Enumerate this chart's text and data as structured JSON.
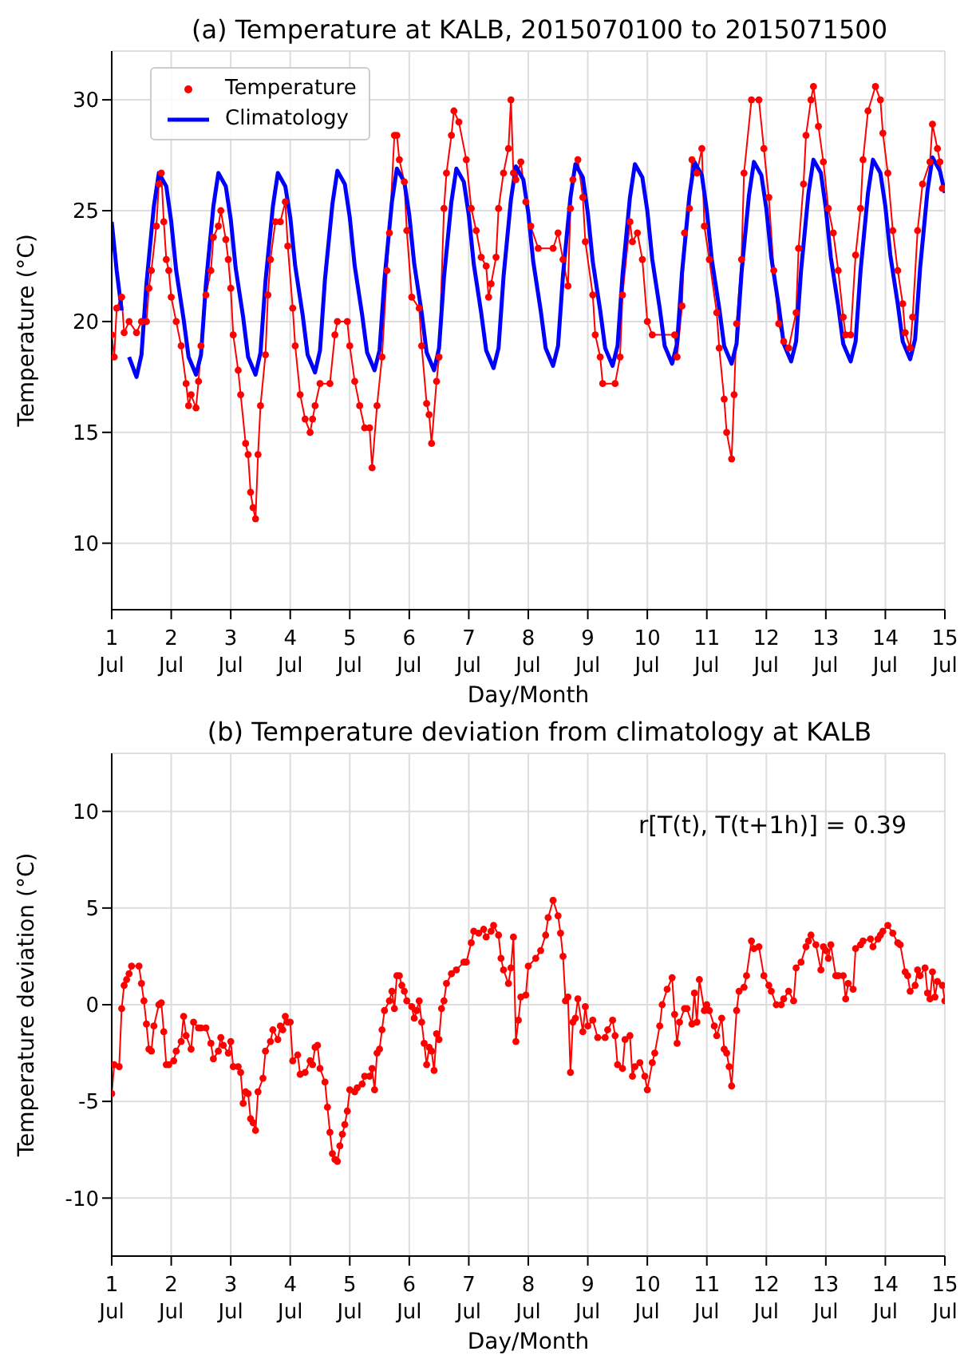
{
  "chart_data": [
    {
      "type": "line",
      "title": "(a) Temperature at KALB, 2015070100 to 2015071500",
      "xlabel": "Day/Month",
      "ylabel": "Temperature (°C)",
      "xlim": [
        "--07-01",
        "--07-15"
      ],
      "xticks": [
        {
          "value": "--07-01",
          "label": "1 Jul"
        },
        {
          "value": "--07-02",
          "label": "2 Jul"
        },
        {
          "value": "--07-03",
          "label": "3 Jul"
        },
        {
          "value": "--07-04",
          "label": "4 Jul"
        },
        {
          "value": "--07-05",
          "label": "5 Jul"
        },
        {
          "value": "--07-06",
          "label": "6 Jul"
        },
        {
          "value": "--07-07",
          "label": "7 Jul"
        },
        {
          "value": "--07-08",
          "label": "8 Jul"
        },
        {
          "value": "--07-09",
          "label": "9 Jul"
        },
        {
          "value": "--07-10",
          "label": "10 Jul"
        },
        {
          "value": "--07-11",
          "label": "11 Jul"
        },
        {
          "value": "--07-12",
          "label": "12 Jul"
        },
        {
          "value": "--07-13",
          "label": "13 Jul"
        },
        {
          "value": "--07-14",
          "label": "14 Jul"
        },
        {
          "value": "--07-15",
          "label": "15 Jul"
        }
      ],
      "ylim": [
        7,
        32.2
      ],
      "yticks": [
        10,
        15,
        20,
        25,
        30
      ],
      "grid": true,
      "legend": "top left",
      "series": [
        {
          "name": "Temperature",
          "color": "#ff0000",
          "marker": "circle",
          "x": [
            "--07-01T00:00",
            "--07-01T01:00",
            "--07-01T02:00",
            "--07-01T04:00",
            "--07-01T05:00",
            "--07-01T07:00",
            "--07-01T10:00",
            "--07-01T12:00",
            "--07-01T14:00",
            "--07-01T15:00",
            "--07-01T16:00",
            "--07-01T18:00",
            "--07-01T19:00",
            "--07-01T20:00",
            "--07-01T21:00",
            "--07-01T22:00",
            "--07-01T23:00",
            "--07-02T00:00",
            "--07-02T02:00",
            "--07-02T04:00",
            "--07-02T06:00",
            "--07-02T07:00",
            "--07-02T08:00",
            "--07-02T10:00",
            "--07-02T11:00",
            "--07-02T12:00",
            "--07-02T14:00",
            "--07-02T16:00",
            "--07-02T17:00",
            "--07-02T19:00",
            "--07-02T20:00",
            "--07-02T22:00",
            "--07-02T23:00",
            "--07-03T00:00",
            "--07-03T01:00",
            "--07-03T03:00",
            "--07-03T04:00",
            "--07-03T06:00",
            "--07-03T07:00",
            "--07-03T08:00",
            "--07-03T09:00",
            "--07-03T10:00",
            "--07-03T11:00",
            "--07-03T12:00",
            "--07-03T14:00",
            "--07-03T15:00",
            "--07-03T16:00",
            "--07-03T18:00",
            "--07-03T20:00",
            "--07-03T22:00",
            "--07-03T23:00",
            "--07-04T01:00",
            "--07-04T02:00",
            "--07-04T04:00",
            "--07-04T06:00",
            "--07-04T08:00",
            "--07-04T09:00",
            "--07-04T10:00",
            "--07-04T12:00",
            "--07-04T16:00",
            "--07-04T18:00",
            "--07-04T19:00",
            "--07-04T23:00",
            "--07-05T00:00",
            "--07-05T02:00",
            "--07-05T04:00",
            "--07-05T06:00",
            "--07-05T08:00",
            "--07-05T09:00",
            "--07-05T11:00",
            "--07-05T13:00",
            "--07-05T15:00",
            "--07-05T16:00",
            "--07-05T18:00",
            "--07-05T19:00",
            "--07-05T20:00",
            "--07-05T22:00",
            "--07-05T23:00",
            "--07-06T01:00",
            "--07-06T04:00",
            "--07-06T05:00",
            "--07-06T07:00",
            "--07-06T08:00",
            "--07-06T09:00",
            "--07-06T11:00",
            "--07-06T12:00",
            "--07-06T14:00",
            "--07-06T15:00",
            "--07-06T17:00",
            "--07-06T18:00",
            "--07-06T20:00",
            "--07-06T23:00",
            "--07-07T01:00",
            "--07-07T03:00",
            "--07-07T05:00",
            "--07-07T07:00",
            "--07-07T08:00",
            "--07-07T09:00",
            "--07-07T11:00",
            "--07-07T12:00",
            "--07-07T14:00",
            "--07-07T16:00",
            "--07-07T17:00",
            "--07-07T18:00",
            "--07-07T19:00",
            "--07-07T21:00",
            "--07-07T23:00",
            "--07-08T01:00",
            "--07-08T04:00",
            "--07-08T10:00",
            "--07-08T12:00",
            "--07-08T14:00",
            "--07-08T16:00",
            "--07-08T17:00",
            "--07-08T18:00",
            "--07-08T20:00",
            "--07-08T22:00",
            "--07-08T23:00",
            "--07-09T02:00",
            "--07-09T03:00",
            "--07-09T05:00",
            "--07-09T06:00",
            "--07-09T11:00",
            "--07-09T13:00",
            "--07-09T14:00",
            "--07-09T17:00",
            "--07-09T18:00",
            "--07-09T20:00",
            "--07-09T22:00",
            "--07-10T00:00",
            "--07-10T02:00",
            "--07-10T11:00",
            "--07-10T12:00",
            "--07-10T14:00",
            "--07-10T15:00",
            "--07-10T17:00",
            "--07-10T18:00",
            "--07-10T20:00",
            "--07-10T22:00",
            "--07-10T23:00",
            "--07-11T01:00",
            "--07-11T04:00",
            "--07-11T05:00",
            "--07-11T07:00",
            "--07-11T08:00",
            "--07-11T10:00",
            "--07-11T11:00",
            "--07-11T12:00",
            "--07-11T14:00",
            "--07-11T15:00",
            "--07-11T18:00",
            "--07-11T21:00",
            "--07-11T23:00",
            "--07-12T01:00",
            "--07-12T03:00",
            "--07-12T05:00",
            "--07-12T07:00",
            "--07-12T09:00",
            "--07-12T12:00",
            "--07-12T13:00",
            "--07-12T15:00",
            "--07-12T16:00",
            "--07-12T18:00",
            "--07-12T19:00",
            "--07-12T21:00",
            "--07-12T23:00",
            "--07-13T01:00",
            "--07-13T03:00",
            "--07-13T05:00",
            "--07-13T07:00",
            "--07-13T08:00",
            "--07-13T10:00",
            "--07-13T12:00",
            "--07-13T14:00",
            "--07-13T15:00",
            "--07-13T17:00",
            "--07-13T20:00",
            "--07-13T22:00",
            "--07-13T23:00",
            "--07-14T01:00",
            "--07-14T03:00",
            "--07-14T05:00",
            "--07-14T07:00",
            "--07-14T08:00",
            "--07-14T10:00",
            "--07-14T11:00",
            "--07-14T13:00",
            "--07-14T15:00",
            "--07-14T18:00",
            "--07-14T19:00",
            "--07-14T21:00",
            "--07-14T22:00",
            "--07-14T23:00"
          ],
          "values": [
            19.4,
            18.4,
            20.6,
            21.1,
            19.5,
            20,
            19.5,
            20,
            20,
            21.5,
            22.3,
            24.3,
            26.2,
            26.7,
            24.5,
            22.8,
            22.3,
            21.1,
            20,
            18.9,
            17.2,
            16.2,
            16.7,
            16.1,
            17.3,
            18.9,
            21.2,
            22.3,
            23.8,
            24.3,
            25,
            23.7,
            22.8,
            21.5,
            19.4,
            17.8,
            16.7,
            14.5,
            14,
            12.3,
            11.6,
            11.1,
            14,
            16.2,
            18.5,
            21.2,
            22.8,
            24.5,
            24.5,
            25.4,
            23.4,
            20.6,
            18.9,
            16.7,
            15.6,
            15,
            15.6,
            16.2,
            17.2,
            17.2,
            19.4,
            20,
            20,
            18.9,
            17.3,
            16.2,
            15.2,
            15.2,
            13.4,
            16.2,
            18.4,
            22.3,
            24,
            28.4,
            28.4,
            27.3,
            26.3,
            24.1,
            21.1,
            20.6,
            18.9,
            16.3,
            15.8,
            14.5,
            17.3,
            18.4,
            25.1,
            26.7,
            28.4,
            29.5,
            29,
            27.3,
            25.1,
            24.1,
            22.9,
            22.5,
            21.1,
            21.7,
            22.9,
            25.1,
            26.7,
            27.8,
            30,
            26.7,
            26.4,
            27.2,
            25.4,
            24.3,
            23.3,
            23.3,
            24,
            22.8,
            21.6,
            25.1,
            26.4,
            27.3,
            25.6,
            23.6,
            21.2,
            19.4,
            18.4,
            17.2,
            17.2,
            18.4,
            21.2,
            24.5,
            23.6,
            24,
            22.8,
            20,
            19.4,
            19.4,
            18.4,
            20.7,
            24,
            25.1,
            27.3,
            26.7,
            27.8,
            24.3,
            22.8,
            20.4,
            18.8,
            16.5,
            15,
            13.8,
            16.7,
            19.9,
            22.8,
            26.7,
            30,
            30,
            27.8,
            25.6,
            22.3,
            19.9,
            19.1,
            18.8,
            20.4,
            23.3,
            26.2,
            28.4,
            30,
            30.6,
            28.8,
            27.2,
            25.1,
            24,
            22.3,
            20.2,
            19.4,
            19.4,
            23,
            25.1,
            27.3,
            29.5,
            30.6,
            30,
            28.5,
            26.7,
            24.1,
            22.3,
            20.8,
            19.5,
            18.8,
            20.2,
            24.1,
            26.2,
            27.2,
            28.9,
            27.8,
            27.2,
            26
          ]
        },
        {
          "name": "Climatology",
          "color": "#0000ff",
          "marker": "none",
          "x": [
            "--07-01T00:00",
            "--07-01T02:00",
            "--07-01T04:00",
            "--07-01T05:00",
            "--07-01T07:00",
            "--07-01T10:00",
            "--07-01T12:00",
            "--07-01T14:00",
            "--07-01T17:00",
            "--07-01T19:00",
            "--07-01T22:00",
            "--07-02T00:00",
            "--07-02T02:00",
            "--07-02T05:00",
            "--07-02T07:00",
            "--07-02T10:00",
            "--07-02T12:00",
            "--07-02T14:00",
            "--07-02T17:00",
            "--07-02T19:00",
            "--07-02T22:00",
            "--07-03T00:00",
            "--07-03T02:00",
            "--07-03T05:00",
            "--07-03T07:00",
            "--07-03T10:00",
            "--07-03T12:00",
            "--07-03T14:00",
            "--07-03T17:00",
            "--07-03T19:00",
            "--07-03T22:00",
            "--07-04T00:00",
            "--07-04T02:00",
            "--07-04T05:00",
            "--07-04T07:00",
            "--07-04T10:00",
            "--07-04T12:00",
            "--07-04T14:00",
            "--07-04T17:00",
            "--07-04T19:00",
            "--07-04T22:00",
            "--07-05T00:00",
            "--07-05T02:00",
            "--07-05T05:00",
            "--07-05T07:00",
            "--07-05T10:00",
            "--07-05T12:00",
            "--07-05T14:00",
            "--07-05T17:00",
            "--07-05T19:00",
            "--07-05T22:00",
            "--07-06T00:00",
            "--07-06T02:00",
            "--07-06T05:00",
            "--07-06T07:00",
            "--07-06T10:00",
            "--07-06T12:00",
            "--07-06T14:00",
            "--07-06T17:00",
            "--07-06T19:00",
            "--07-06T22:00",
            "--07-07T00:00",
            "--07-07T02:00",
            "--07-07T05:00",
            "--07-07T07:00",
            "--07-07T10:00",
            "--07-07T12:00",
            "--07-07T14:00",
            "--07-07T17:00",
            "--07-07T19:00",
            "--07-07T22:00",
            "--07-08T00:00",
            "--07-08T02:00",
            "--07-08T05:00",
            "--07-08T07:00",
            "--07-08T10:00",
            "--07-08T12:00",
            "--07-08T14:00",
            "--07-08T17:00",
            "--07-08T19:00",
            "--07-08T22:00",
            "--07-09T00:00",
            "--07-09T02:00",
            "--07-09T05:00",
            "--07-09T07:00",
            "--07-09T10:00",
            "--07-09T12:00",
            "--07-09T14:00",
            "--07-09T17:00",
            "--07-09T19:00",
            "--07-09T22:00",
            "--07-10T00:00",
            "--07-10T02:00",
            "--07-10T05:00",
            "--07-10T07:00",
            "--07-10T10:00",
            "--07-10T12:00",
            "--07-10T14:00",
            "--07-10T17:00",
            "--07-10T19:00",
            "--07-10T22:00",
            "--07-11T00:00",
            "--07-11T02:00",
            "--07-11T05:00",
            "--07-11T07:00",
            "--07-11T10:00",
            "--07-11T12:00",
            "--07-11T14:00",
            "--07-11T17:00",
            "--07-11T19:00",
            "--07-11T22:00",
            "--07-12T00:00",
            "--07-12T02:00",
            "--07-12T05:00",
            "--07-12T07:00",
            "--07-12T10:00",
            "--07-12T12:00",
            "--07-12T14:00",
            "--07-12T17:00",
            "--07-12T19:00",
            "--07-12T22:00",
            "--07-13T00:00",
            "--07-13T02:00",
            "--07-13T05:00",
            "--07-13T07:00",
            "--07-13T10:00",
            "--07-13T12:00",
            "--07-13T14:00",
            "--07-13T17:00",
            "--07-13T19:00",
            "--07-13T22:00",
            "--07-14T00:00",
            "--07-14T02:00",
            "--07-14T05:00",
            "--07-14T07:00",
            "--07-14T10:00",
            "--07-14T12:00",
            "--07-14T14:00",
            "--07-14T17:00",
            "--07-14T19:00",
            "--07-14T22:00",
            "--07-15T00:00"
          ],
          "values": [
            24.5,
            22.3,
            20.5,
            null,
            18.4,
            17.5,
            18.5,
            21.7,
            25.2,
            26.7,
            26.1,
            24.5,
            22.3,
            20.1,
            18.4,
            17.6,
            18.5,
            21.7,
            25.2,
            26.7,
            26.1,
            24.6,
            22.4,
            20.2,
            18.4,
            17.6,
            18.6,
            21.8,
            25.2,
            26.7,
            26.1,
            24.7,
            22.5,
            20.3,
            18.5,
            17.7,
            18.7,
            21.9,
            25.3,
            26.8,
            26.2,
            24.7,
            22.5,
            20.3,
            18.6,
            17.8,
            18.7,
            21.9,
            25.4,
            26.9,
            26.3,
            24.8,
            22.6,
            20.4,
            18.6,
            17.8,
            18.8,
            22.0,
            25.4,
            26.9,
            26.3,
            24.8,
            22.6,
            20.4,
            18.7,
            17.9,
            18.8,
            22.0,
            25.5,
            27.0,
            26.4,
            24.9,
            22.7,
            20.5,
            18.8,
            18.0,
            18.9,
            22.1,
            25.6,
            27.1,
            26.5,
            24.9,
            22.7,
            20.5,
            18.8,
            18.0,
            18.9,
            22.1,
            25.6,
            27.1,
            26.5,
            25.0,
            22.8,
            20.6,
            18.9,
            18.1,
            19.0,
            22.2,
            25.7,
            27.2,
            26.6,
            25.0,
            22.8,
            20.6,
            18.9,
            18.1,
            19.0,
            22.2,
            25.7,
            27.2,
            26.6,
            25.1,
            22.9,
            20.7,
            19.0,
            18.2,
            19.1,
            22.3,
            25.8,
            27.3,
            26.7,
            25.1,
            22.9,
            20.7,
            19.0,
            18.2,
            19.1,
            22.3,
            25.8,
            27.3,
            26.7,
            25.2,
            23.0,
            20.8,
            19.1,
            18.3,
            19.2,
            22.4,
            25.9,
            27.4,
            26.8,
            25.8
          ]
        }
      ]
    },
    {
      "type": "line",
      "title": "(b) Temperature deviation from climatology at KALB",
      "xlabel": "Day/Month",
      "ylabel": "Temperature deviation (°C)",
      "annotations": [
        "r[T(t), T(t+1h)] =  0.39"
      ],
      "xlim": [
        "--07-01",
        "--07-15"
      ],
      "xticks": [
        {
          "value": "--07-01",
          "label": "1 Jul"
        },
        {
          "value": "--07-02",
          "label": "2 Jul"
        },
        {
          "value": "--07-03",
          "label": "3 Jul"
        },
        {
          "value": "--07-04",
          "label": "4 Jul"
        },
        {
          "value": "--07-05",
          "label": "5 Jul"
        },
        {
          "value": "--07-06",
          "label": "6 Jul"
        },
        {
          "value": "--07-07",
          "label": "7 Jul"
        },
        {
          "value": "--07-08",
          "label": "8 Jul"
        },
        {
          "value": "--07-09",
          "label": "9 Jul"
        },
        {
          "value": "--07-10",
          "label": "10 Jul"
        },
        {
          "value": "--07-11",
          "label": "11 Jul"
        },
        {
          "value": "--07-12",
          "label": "12 Jul"
        },
        {
          "value": "--07-13",
          "label": "13 Jul"
        },
        {
          "value": "--07-14",
          "label": "14 Jul"
        },
        {
          "value": "--07-15",
          "label": "15 Jul"
        }
      ],
      "ylim": [
        -13,
        13
      ],
      "yticks": [
        -10,
        -5,
        0,
        5,
        10
      ],
      "grid": true,
      "series": [
        {
          "color": "#ff0000",
          "marker": "circle",
          "x": [
            "--07-01T00:00",
            "--07-01T01:00",
            "--07-01T03:00",
            "--07-01T04:00",
            "--07-01T05:00",
            "--07-01T06:00",
            "--07-01T07:00",
            "--07-01T08:00",
            "--07-01T11:00",
            "--07-01T12:00",
            "--07-01T13:00",
            "--07-01T14:00",
            "--07-01T15:00",
            "--07-01T16:00",
            "--07-01T17:00",
            "--07-01T19:00",
            "--07-01T20:00",
            "--07-01T21:00",
            "--07-01T22:00",
            "--07-01T23:00",
            "--07-02T01:00",
            "--07-02T02:00",
            "--07-02T04:00",
            "--07-02T05:00",
            "--07-02T06:00",
            "--07-02T08:00",
            "--07-02T09:00",
            "--07-02T11:00",
            "--07-02T12:00",
            "--07-02T14:00",
            "--07-02T16:00",
            "--07-02T17:00",
            "--07-02T19:00",
            "--07-02T20:00",
            "--07-02T21:00",
            "--07-02T23:00",
            "--07-03T00:00",
            "--07-03T01:00",
            "--07-03T03:00",
            "--07-03T04:00",
            "--07-03T05:00",
            "--07-03T06:00",
            "--07-03T07:00",
            "--07-03T08:00",
            "--07-03T09:00",
            "--07-03T10:00",
            "--07-03T11:00",
            "--07-03T13:00",
            "--07-03T14:00",
            "--07-03T16:00",
            "--07-03T17:00",
            "--07-03T19:00",
            "--07-03T20:00",
            "--07-03T21:00",
            "--07-03T22:00",
            "--07-03T23:00",
            "--07-04T00:00",
            "--07-04T01:00",
            "--07-04T03:00",
            "--07-04T04:00",
            "--07-04T06:00",
            "--07-04T08:00",
            "--07-04T09:00",
            "--07-04T10:00",
            "--07-04T11:00",
            "--07-04T12:00",
            "--07-04T14:00",
            "--07-04T15:00",
            "--07-04T16:00",
            "--07-04T17:00",
            "--07-04T18:00",
            "--07-04T19:00",
            "--07-04T20:00",
            "--07-04T21:00",
            "--07-04T22:00",
            "--07-04T23:00",
            "--07-05T00:00",
            "--07-05T02:00",
            "--07-05T03:00",
            "--07-05T05:00",
            "--07-05T06:00",
            "--07-05T08:00",
            "--07-05T09:00",
            "--07-05T10:00",
            "--07-05T11:00",
            "--07-05T12:00",
            "--07-05T13:00",
            "--07-05T14:00",
            "--07-05T16:00",
            "--07-05T17:00",
            "--07-05T18:00",
            "--07-05T19:00",
            "--07-05T20:00",
            "--07-05T21:00",
            "--07-05T22:00",
            "--07-05T23:00",
            "--07-06T01:00",
            "--07-06T02:00",
            "--07-06T03:00",
            "--07-06T04:00",
            "--07-06T05:00",
            "--07-06T06:00",
            "--07-06T07:00",
            "--07-06T08:00",
            "--07-06T09:00",
            "--07-06T10:00",
            "--07-06T11:00",
            "--07-06T12:00",
            "--07-06T13:00",
            "--07-06T14:00",
            "--07-06T15:00",
            "--07-06T17:00",
            "--07-06T19:00",
            "--07-06T22:00",
            "--07-06T23:00",
            "--07-07T01:00",
            "--07-07T02:00",
            "--07-07T04:00",
            "--07-07T06:00",
            "--07-07T07:00",
            "--07-07T09:00",
            "--07-07T10:00",
            "--07-07T12:00",
            "--07-07T13:00",
            "--07-07T14:00",
            "--07-07T16:00",
            "--07-07T17:00",
            "--07-07T18:00",
            "--07-07T19:00",
            "--07-07T20:00",
            "--07-07T21:00",
            "--07-07T23:00",
            "--07-08T00:00",
            "--07-08T03:00",
            "--07-08T05:00",
            "--07-08T07:00",
            "--07-08T08:00",
            "--07-08T10:00",
            "--07-08T12:00",
            "--07-08T13:00",
            "--07-08T14:00",
            "--07-08T15:00",
            "--07-08T16:00",
            "--07-08T17:00",
            "--07-08T18:00",
            "--07-08T19:00",
            "--07-08T20:00",
            "--07-08T22:00",
            "--07-08T23:00",
            "--07-09T00:00",
            "--07-09T02:00",
            "--07-09T04:00",
            "--07-09T07:00",
            "--07-09T08:00",
            "--07-09T10:00",
            "--07-09T11:00",
            "--07-09T12:00",
            "--07-09T14:00",
            "--07-09T15:00",
            "--07-09T17:00",
            "--07-09T18:00",
            "--07-09T19:00",
            "--07-09T21:00",
            "--07-09T23:00",
            "--07-10T00:00",
            "--07-10T02:00",
            "--07-10T03:00",
            "--07-10T05:00",
            "--07-10T06:00",
            "--07-10T08:00",
            "--07-10T10:00",
            "--07-10T11:00",
            "--07-10T12:00",
            "--07-10T13:00",
            "--07-10T15:00",
            "--07-10T16:00",
            "--07-10T18:00",
            "--07-10T19:00",
            "--07-10T20:00",
            "--07-10T21:00",
            "--07-10T23:00",
            "--07-11T00:00",
            "--07-11T01:00",
            "--07-11T03:00",
            "--07-11T04:00",
            "--07-11T06:00",
            "--07-11T07:00",
            "--07-11T08:00",
            "--07-11T09:00",
            "--07-11T10:00",
            "--07-11T12:00",
            "--07-11T13:00",
            "--07-11T15:00",
            "--07-11T16:00",
            "--07-11T18:00",
            "--07-11T19:00",
            "--07-11T21:00",
            "--07-11T23:00",
            "--07-12T01:00",
            "--07-12T02:00",
            "--07-12T04:00",
            "--07-12T06:00",
            "--07-12T07:00",
            "--07-12T09:00",
            "--07-12T11:00",
            "--07-12T12:00",
            "--07-12T14:00",
            "--07-12T16:00",
            "--07-12T17:00",
            "--07-12T18:00",
            "--07-12T20:00",
            "--07-12T22:00",
            "--07-12T23:00",
            "--07-13T00:00",
            "--07-13T01:00",
            "--07-13T02:00",
            "--07-13T04:00",
            "--07-13T05:00",
            "--07-13T07:00",
            "--07-13T08:00",
            "--07-13T09:00",
            "--07-13T11:00",
            "--07-13T12:00",
            "--07-13T14:00",
            "--07-13T15:00",
            "--07-13T18:00",
            "--07-13T19:00",
            "--07-13T21:00",
            "--07-13T22:00",
            "--07-13T23:00",
            "--07-14T01:00",
            "--07-14T03:00",
            "--07-14T05:00",
            "--07-14T06:00",
            "--07-14T08:00",
            "--07-14T09:00",
            "--07-14T10:00",
            "--07-14T12:00",
            "--07-14T13:00",
            "--07-14T14:00",
            "--07-14T16:00",
            "--07-14T17:00",
            "--07-14T18:00",
            "--07-14T19:00",
            "--07-14T20:00",
            "--07-14T21:00",
            "--07-14T23:00",
            "--07-15T00:00"
          ],
          "values": [
            -4.6,
            -3.1,
            -3.2,
            -0.2,
            1.0,
            1.3,
            1.6,
            2.0,
            2.0,
            1.1,
            0.2,
            -1.0,
            -2.3,
            -2.4,
            -1.1,
            0,
            0.1,
            -1.4,
            -3.1,
            -3.1,
            -2.9,
            -2.4,
            -1.9,
            -0.6,
            -1.6,
            -2.3,
            -0.9,
            -1.2,
            -1.2,
            -1.2,
            -2.0,
            -2.8,
            -2.4,
            -1.7,
            -2.1,
            -2.5,
            -1.9,
            -3.2,
            -3.2,
            -3.5,
            -5.1,
            -4.5,
            -4.6,
            -5.9,
            -6.1,
            -6.5,
            -4.5,
            -3.8,
            -2.4,
            -1.9,
            -1.3,
            -1.8,
            -1.1,
            -1.3,
            -0.6,
            -0.9,
            -0.9,
            -2.9,
            -2.6,
            -3.6,
            -3.5,
            -2.9,
            -3.1,
            -2.2,
            -2.1,
            -3.3,
            -4.0,
            -5.3,
            -6.6,
            -7.7,
            -8.0,
            -8.1,
            -7.3,
            -6.7,
            -6.2,
            -5.5,
            -4.4,
            -4.5,
            -4.3,
            -4.1,
            -3.7,
            -3.7,
            -3.3,
            -4.4,
            -2.5,
            -2.3,
            -1.3,
            -0.3,
            0.2,
            0.7,
            -0.2,
            1.5,
            1.5,
            1.0,
            0.7,
            0.2,
            -0.1,
            -0.7,
            -0.3,
            0.2,
            -0.9,
            -2.0,
            -3.1,
            -2.2,
            -2.4,
            -3.4,
            -1.5,
            -1.8,
            -0.2,
            0.2,
            1.1,
            1.6,
            1.8,
            2.2,
            2.2,
            3.2,
            3.8,
            3.7,
            3.9,
            3.5,
            3.8,
            4.1,
            3.6,
            2.4,
            1.8,
            1.1,
            1.9,
            3.5,
            -1.9,
            -0.8,
            0.4,
            0.5,
            2.0,
            2.4,
            2.8,
            3.6,
            4.5,
            5.4,
            4.6,
            3.7,
            2.5,
            0.2,
            0.4,
            -3.5,
            -0.9,
            -0.7,
            0.3,
            -1.4,
            -0.1,
            -1.1,
            -0.8,
            -1.7,
            -1.7,
            -1.3,
            -0.8,
            -1.6,
            -3.1,
            -3.3,
            -1.8,
            -1.6,
            -3.7,
            -3.2,
            -3.0,
            -3.7,
            -4.4,
            -3.0,
            -2.5,
            -1.1,
            0,
            0.8,
            1.4,
            -0.5,
            -2.0,
            -0.9,
            -0.2,
            -0.2,
            -1.0,
            0.6,
            -0.9,
            1.3,
            -0.3,
            0,
            -0.3,
            -1.1,
            -1.6,
            -0.7,
            -2.3,
            -2.5,
            -3.2,
            -4.2,
            -0.3,
            0.7,
            0.9,
            1.5,
            3.3,
            2.9,
            3.0,
            1.5,
            1.0,
            0.7,
            0,
            0,
            0.3,
            0.7,
            0.2,
            1.9,
            2.2,
            3.0,
            3.3,
            3.6,
            3.1,
            1.8,
            3.0,
            2.8,
            2.4,
            3.1,
            1.5,
            1.5,
            1.5,
            0.3,
            1.1,
            0.8,
            2.9,
            3.1,
            3.3,
            3.4,
            3.0,
            3.4,
            3.6,
            3.8,
            4.1,
            3.7,
            3.2,
            3.1,
            1.7,
            1.5,
            0.7,
            1.0,
            1.8,
            1.5,
            1.9,
            0.6,
            0.3,
            1.7,
            0.4,
            1.2,
            1.0,
            0.2
          ]
        }
      ]
    }
  ]
}
